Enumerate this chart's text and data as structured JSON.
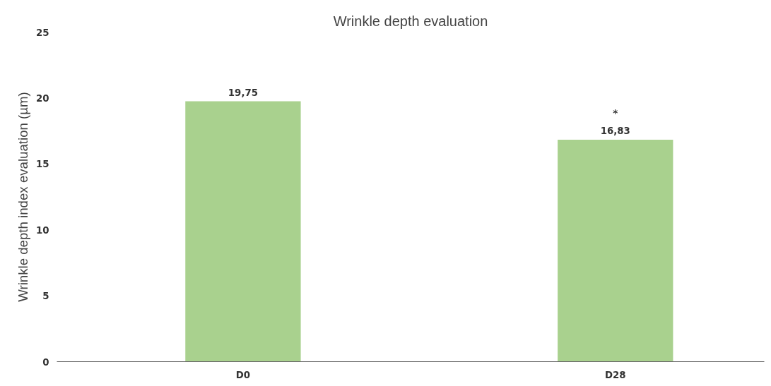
{
  "chart_data": {
    "type": "bar",
    "title": "Wrinkle depth evaluation",
    "ylabel": "Wrinkle depth index evaluation (µm)",
    "categories": [
      "D0",
      "D28"
    ],
    "values": [
      19.75,
      16.83
    ],
    "value_labels": [
      "19,75",
      "16,83"
    ],
    "color": "#a9d18e",
    "ylim": [
      0,
      25
    ],
    "yticks": [
      0,
      5,
      10,
      15,
      20,
      25
    ],
    "grid": false,
    "annotations": [
      {
        "text": "*",
        "x": "D28",
        "y": 16.83
      }
    ]
  }
}
